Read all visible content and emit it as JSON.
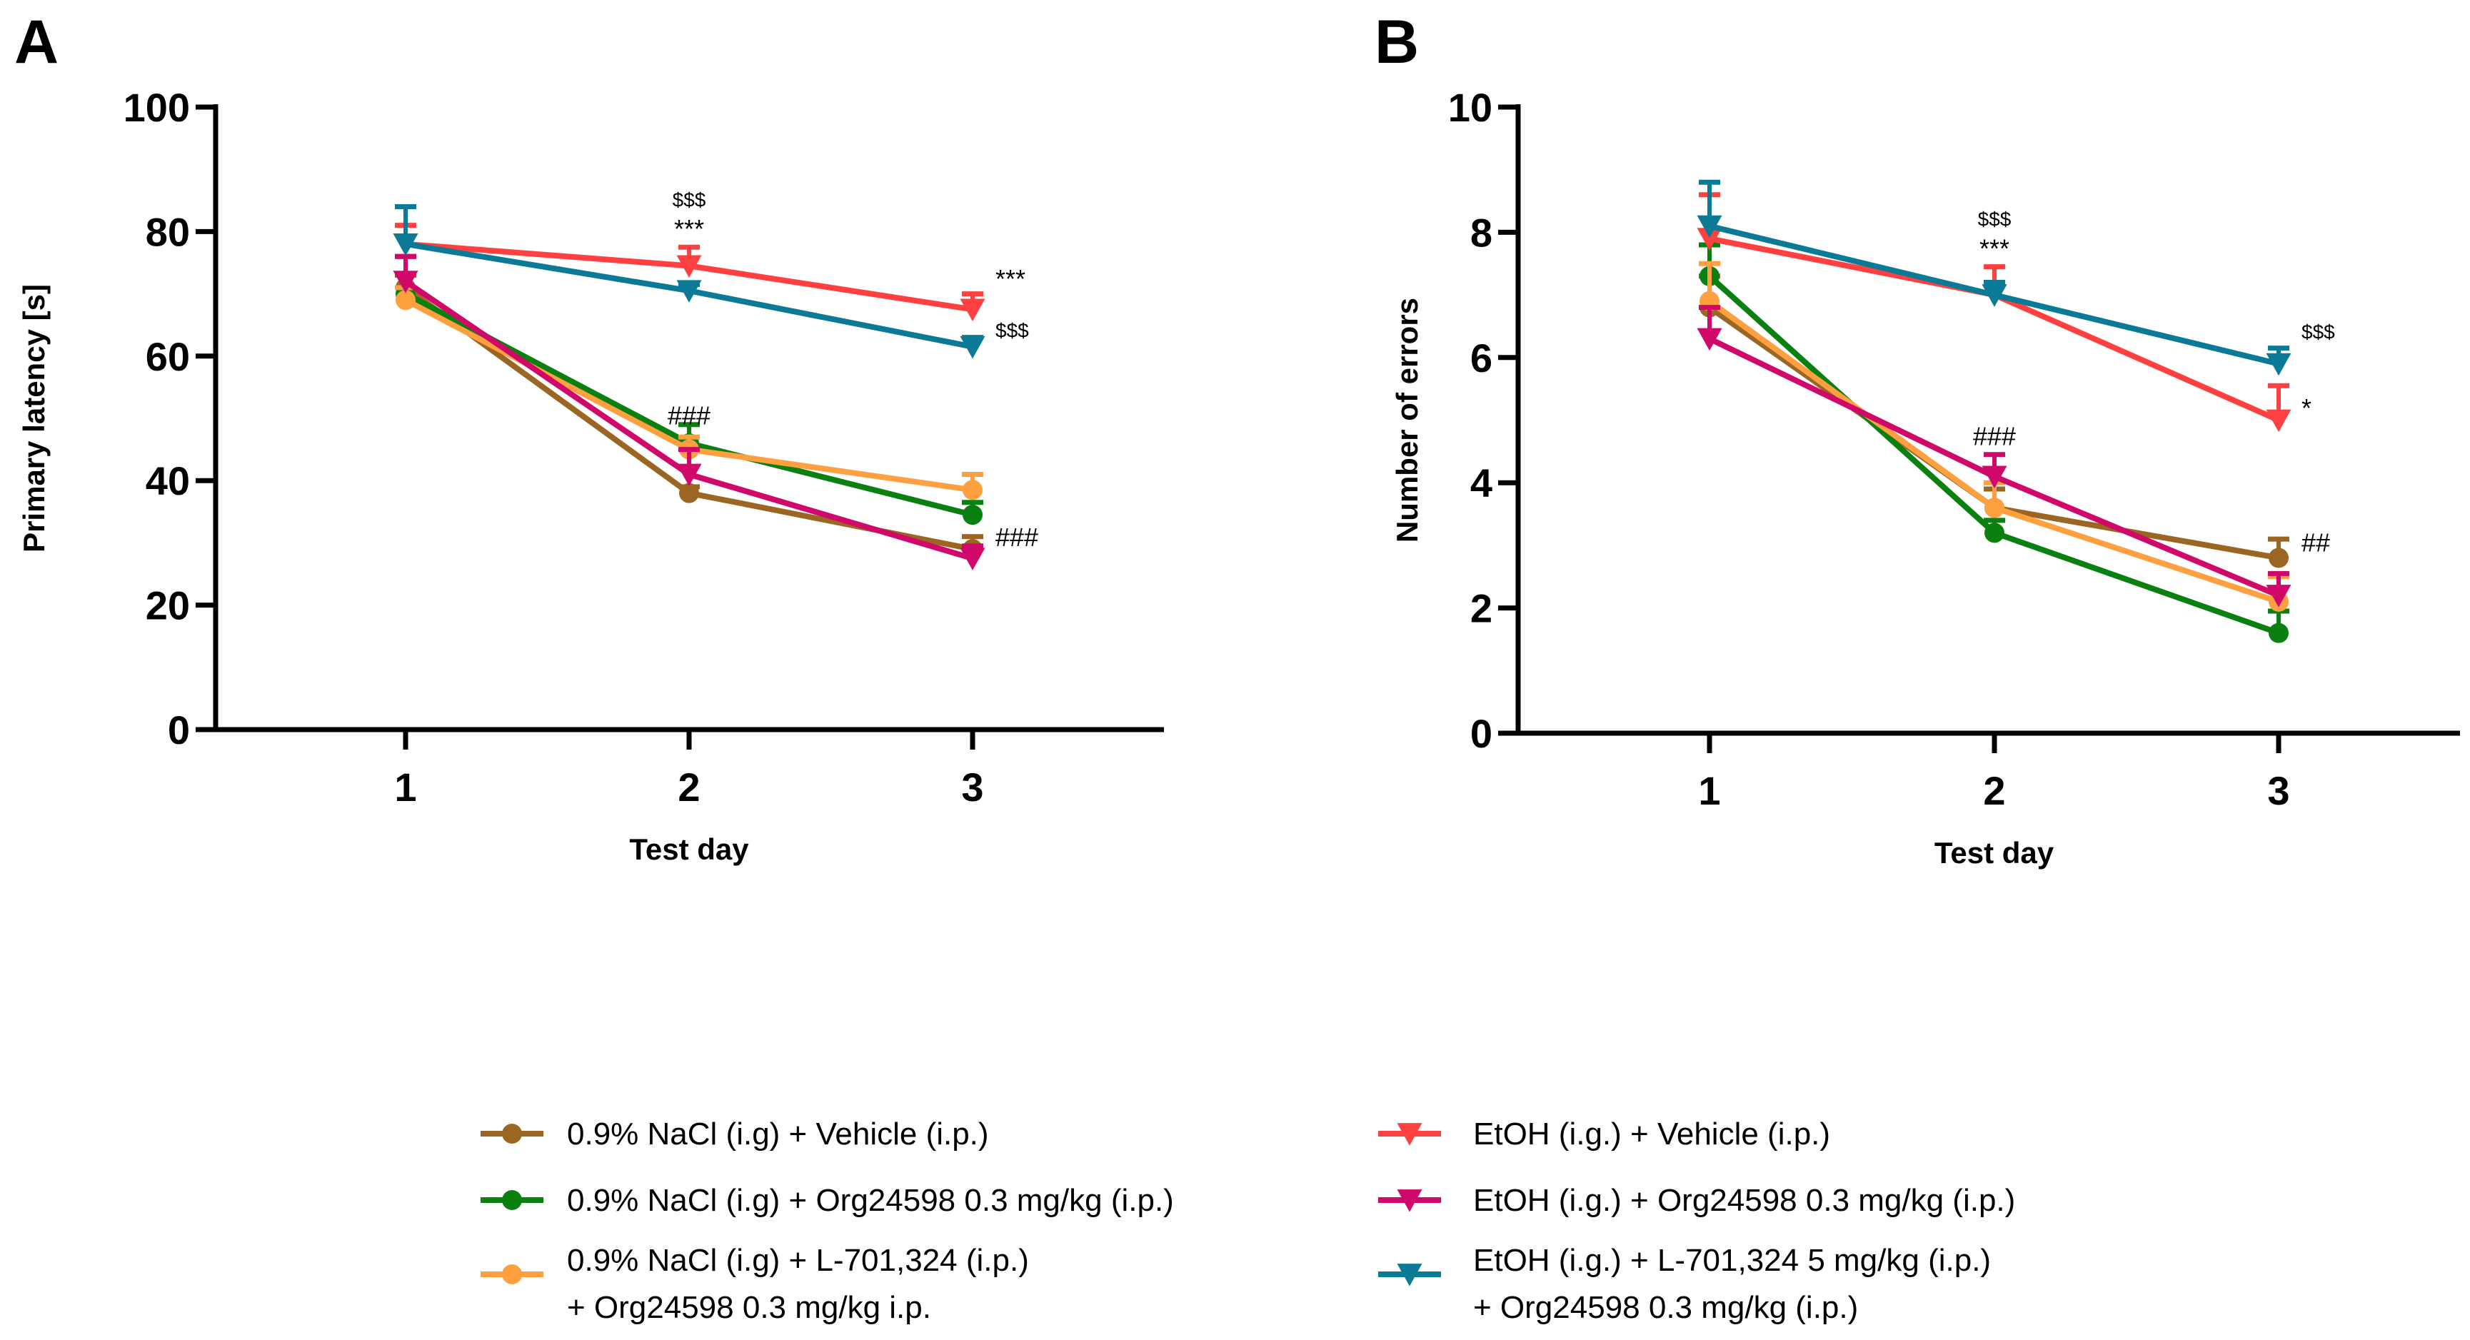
{
  "chart_data": [
    {
      "type": "line",
      "panel_label": "A",
      "xlabel": "Test day",
      "ylabel": "Primary latency [s]",
      "x": [
        1,
        2,
        3
      ],
      "x_tick_labels": [
        "1",
        "2",
        "3"
      ],
      "ylim": [
        0,
        100
      ],
      "y_ticks": [
        0,
        20,
        40,
        60,
        80,
        100
      ],
      "grid": false,
      "series": [
        {
          "name": "0.9% NaCl (i.g) + Vehicle (i.p.)",
          "color": "#9B6523",
          "marker": "circle",
          "values": [
            71,
            38,
            29
          ],
          "sem": [
            2,
            1,
            2
          ]
        },
        {
          "name": "0.9% NaCl (i.g) + Org24598 0.3 mg/kg (i.p.)",
          "color": "#0A8010",
          "marker": "circle",
          "values": [
            70,
            46,
            34.5
          ],
          "sem": [
            6,
            3,
            2
          ]
        },
        {
          "name": "0.9% NaCl (i.g) + L-701,324 (i.p.) + Org24598 0.3 mg/kg i.p.",
          "color": "#FFA040",
          "marker": "circle",
          "values": [
            69,
            45,
            38.5
          ],
          "sem": [
            2,
            2,
            2.5
          ]
        },
        {
          "name": "EtOH (i.g.) + Vehicle (i.p.)",
          "color": "#FF4040",
          "marker": "triangle-down",
          "values": [
            78,
            74.5,
            67.5
          ],
          "sem": [
            3,
            3,
            2.5
          ]
        },
        {
          "name": "EtOH (i.g.) + Org24598 0.3 mg/kg (i.p.)",
          "color": "#D0086A",
          "marker": "triangle-down",
          "values": [
            72,
            41,
            27.5
          ],
          "sem": [
            4,
            4,
            2
          ]
        },
        {
          "name": "EtOH (i.g.) + L-701,324 5 mg/kg (i.p.) + Org24598 0.3 mg/kg (i.p.)",
          "color": "#0A7A96",
          "marker": "triangle-down",
          "values": [
            78,
            70.5,
            61.5
          ],
          "sem": [
            6,
            1,
            1.5
          ]
        }
      ],
      "annotations": [
        {
          "text": "$$$",
          "day": 2,
          "y": 84,
          "align": "center",
          "size": "small"
        },
        {
          "text": "***",
          "day": 2,
          "y": 79,
          "align": "center",
          "size": "normal"
        },
        {
          "text": "###",
          "day": 2,
          "y": 49,
          "align": "center",
          "size": "normal"
        },
        {
          "text": "***",
          "day": 3,
          "y": 71,
          "align": "right",
          "size": "normal"
        },
        {
          "text": "$$$",
          "day": 3,
          "y": 63,
          "align": "right",
          "size": "small"
        },
        {
          "text": "###",
          "day": 3,
          "y": 29.5,
          "align": "right",
          "size": "normal"
        }
      ]
    },
    {
      "type": "line",
      "panel_label": "B",
      "xlabel": "Test day",
      "ylabel": "Number of errors",
      "x": [
        1,
        2,
        3
      ],
      "x_tick_labels": [
        "1",
        "2",
        "3"
      ],
      "ylim": [
        0,
        10
      ],
      "y_ticks": [
        0,
        2,
        4,
        6,
        8,
        10
      ],
      "grid": false,
      "series": [
        {
          "name": "0.9% NaCl (i.g) + Vehicle (i.p.)",
          "color": "#9B6523",
          "marker": "circle",
          "values": [
            6.8,
            3.6,
            2.8
          ],
          "sem": [
            0.5,
            0.3,
            0.3
          ]
        },
        {
          "name": "0.9% NaCl (i.g) + Org24598 0.3 mg/kg (i.p.)",
          "color": "#0A8010",
          "marker": "circle",
          "values": [
            7.3,
            3.2,
            1.6
          ],
          "sem": [
            0.5,
            0.2,
            0.35
          ]
        },
        {
          "name": "0.9% NaCl (i.g) + L-701,324 (i.p.) + Org24598 0.3 mg/kg i.p.",
          "color": "#FFA040",
          "marker": "circle",
          "values": [
            6.9,
            3.6,
            2.1
          ],
          "sem": [
            0.6,
            0.4,
            0.4
          ]
        },
        {
          "name": "EtOH (i.g.) + Vehicle (i.p.)",
          "color": "#FF4040",
          "marker": "triangle-down",
          "values": [
            7.9,
            7.0,
            5.0
          ],
          "sem": [
            0.7,
            0.45,
            0.55
          ]
        },
        {
          "name": "EtOH (i.g.) + Org24598 0.3 mg/kg (i.p.)",
          "color": "#D0086A",
          "marker": "triangle-down",
          "values": [
            6.3,
            4.1,
            2.2
          ],
          "sem": [
            0.5,
            0.35,
            0.35
          ]
        },
        {
          "name": "EtOH (i.g.) + L-701,324 5 mg/kg (i.p.) + Org24598 0.3 mg/kg (i.p.)",
          "color": "#0A7A96",
          "marker": "triangle-down",
          "values": [
            8.1,
            7.0,
            5.9
          ],
          "sem": [
            0.7,
            0.2,
            0.25
          ]
        }
      ],
      "annotations": [
        {
          "text": "$$$",
          "day": 2,
          "y": 8.1,
          "align": "center",
          "size": "small"
        },
        {
          "text": "***",
          "day": 2,
          "y": 7.6,
          "align": "center",
          "size": "normal"
        },
        {
          "text": "###",
          "day": 2,
          "y": 4.6,
          "align": "center",
          "size": "normal"
        },
        {
          "text": "$$$",
          "day": 3,
          "y": 6.3,
          "align": "right",
          "size": "small"
        },
        {
          "text": "*",
          "day": 3,
          "y": 5.05,
          "align": "right",
          "size": "normal"
        },
        {
          "text": "##",
          "day": 3,
          "y": 2.9,
          "align": "right",
          "size": "normal"
        }
      ]
    }
  ],
  "legend": {
    "placement": "bottom",
    "items": [
      {
        "lines": [
          "0.9% NaCl (i.g) + Vehicle (i.p.)"
        ],
        "color": "#9B6523",
        "marker": "circle"
      },
      {
        "lines": [
          "0.9% NaCl (i.g) + Org24598 0.3 mg/kg (i.p.)"
        ],
        "color": "#0A8010",
        "marker": "circle"
      },
      {
        "lines": [
          "0.9% NaCl (i.g) + L-701,324 (i.p.)",
          "+ Org24598 0.3 mg/kg i.p."
        ],
        "color": "#FFA040",
        "marker": "circle"
      },
      {
        "lines": [
          "EtOH (i.g.) + Vehicle (i.p.)"
        ],
        "color": "#FF4040",
        "marker": "triangle-down"
      },
      {
        "lines": [
          "EtOH (i.g.) + Org24598 0.3 mg/kg (i.p.)"
        ],
        "color": "#D0086A",
        "marker": "triangle-down"
      },
      {
        "lines": [
          "EtOH (i.g.) + L-701,324 5 mg/kg (i.p.)",
          "+ Org24598 0.3 mg/kg (i.p.)"
        ],
        "color": "#0A7A96",
        "marker": "triangle-down"
      }
    ]
  }
}
